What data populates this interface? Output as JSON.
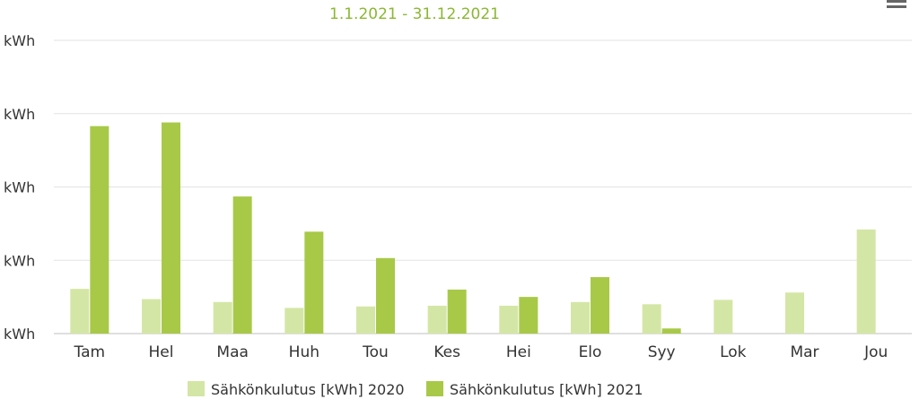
{
  "chart_data": {
    "type": "bar",
    "title": "",
    "subtitle": "1.1.2021 - 31.12.2021",
    "xlabel": "",
    "ylabel": "",
    "y_tick_labels": [
      "kWh",
      "kWh",
      "kWh",
      "kWh",
      "kWh"
    ],
    "ylim": [
      0,
      4
    ],
    "grid": true,
    "legend_position": "bottom",
    "categories": [
      "Tam",
      "Hel",
      "Maa",
      "Huh",
      "Tou",
      "Kes",
      "Hei",
      "Elo",
      "Syy",
      "Lok",
      "Mar",
      "Jou"
    ],
    "series": [
      {
        "name": "Sähkönkulutus [kWh] 2020",
        "color": "#d4e6a5",
        "values": [
          0.61,
          0.47,
          0.43,
          0.35,
          0.37,
          0.38,
          0.38,
          0.43,
          0.4,
          0.46,
          0.56,
          1.42
        ]
      },
      {
        "name": "Sähkönkulutus [kWh] 2021",
        "color": "#a8c948",
        "values": [
          2.83,
          2.88,
          1.87,
          1.39,
          1.03,
          0.6,
          0.5,
          0.77,
          0.07,
          null,
          null,
          null
        ]
      }
    ]
  },
  "menu_icon": "hamburger-menu-icon"
}
